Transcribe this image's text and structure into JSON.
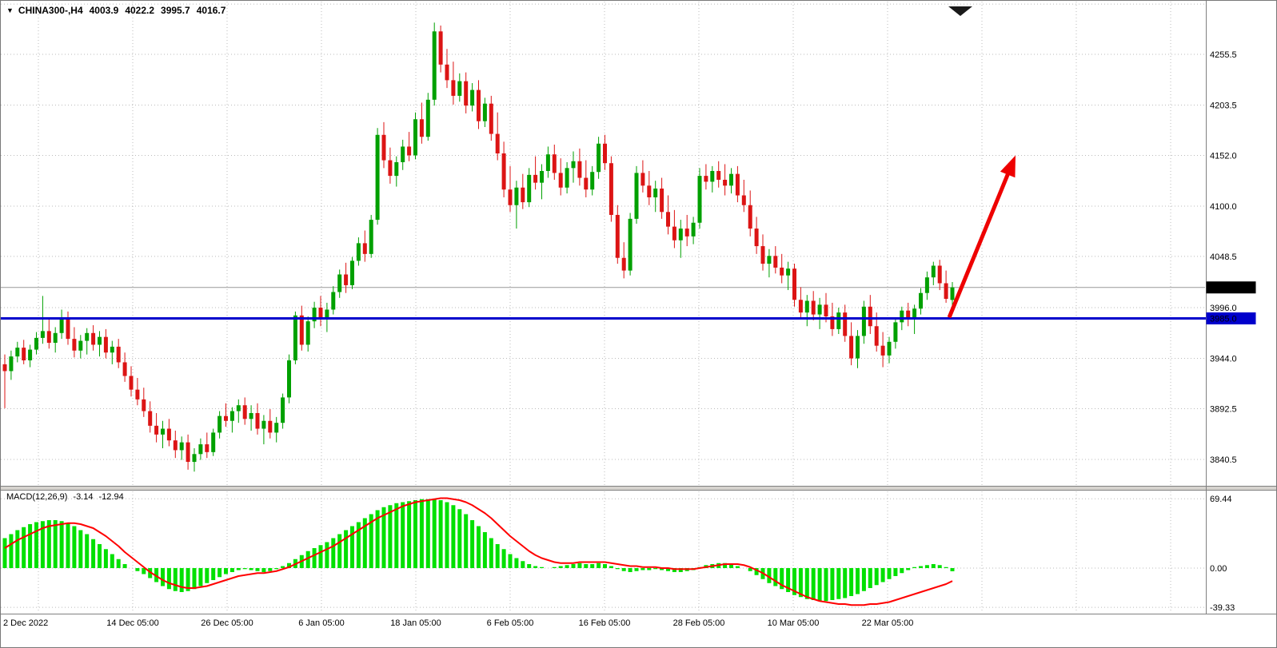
{
  "info_bar": {
    "marker": "▼",
    "symbol_period": "CHINA300-,H4",
    "open": "4003.9",
    "high": "4022.2",
    "low": "3995.7",
    "close": "4016.7"
  },
  "macd_panel": {
    "label": "MACD(12,26,9)",
    "main_value": "-3.14",
    "signal_value": "-12.94"
  },
  "colors": {
    "bull": "#00A000",
    "bear": "#DC1414",
    "grid": "#BBBBBB",
    "current_price_line": "#999999",
    "level_blue": "#0000CC",
    "badge_current_bg": "#000000",
    "badge_text": "#FFFFFF",
    "macd_hist": "#00E000",
    "macd_signal": "#FF0000",
    "arrow": "#EE0000",
    "separator": "#D6D3CE",
    "border": "#787878"
  },
  "chart_data": {
    "type": "candlestick",
    "symbol": "CHINA300-",
    "timeframe": "H4",
    "current_price": 4016.7,
    "level_line": 3985.0,
    "extra_gridline": 4307.0,
    "y_ticks": [
      4255.5,
      4203.5,
      4152.0,
      4100.0,
      4048.5,
      3996.0,
      3944.0,
      3892.5,
      3840.5
    ],
    "x_labels": [
      "2 Dec 2022",
      "14 Dec 05:00",
      "26 Dec 05:00",
      "6 Jan 05:00",
      "18 Jan 05:00",
      "6 Feb 05:00",
      "16 Feb 05:00",
      "28 Feb 05:00",
      "10 Mar 05:00",
      "22 Mar 05:00"
    ],
    "macd_ticks": [
      69.44,
      0,
      -39.33
    ],
    "arrow": {
      "from_bar": 149.5,
      "from_price": 3986,
      "to_bar": 160,
      "to_price": 4152
    },
    "candles": [
      [
        3938,
        3948,
        3893,
        3931
      ],
      [
        3931,
        3952,
        3922,
        3946
      ],
      [
        3946,
        3961,
        3940,
        3955
      ],
      [
        3955,
        3963,
        3938,
        3942
      ],
      [
        3942,
        3958,
        3935,
        3953
      ],
      [
        3953,
        3971,
        3948,
        3965
      ],
      [
        3965,
        4008,
        3959,
        3972
      ],
      [
        3972,
        3985,
        3954,
        3960
      ],
      [
        3960,
        3976,
        3950,
        3970
      ],
      [
        3970,
        3994,
        3964,
        3986
      ],
      [
        3986,
        3992,
        3958,
        3964
      ],
      [
        3964,
        3976,
        3945,
        3952
      ],
      [
        3952,
        3968,
        3944,
        3962
      ],
      [
        3962,
        3975,
        3948,
        3970
      ],
      [
        3970,
        3978,
        3952,
        3958
      ],
      [
        3958,
        3972,
        3946,
        3966
      ],
      [
        3966,
        3974,
        3944,
        3950
      ],
      [
        3950,
        3962,
        3938,
        3956
      ],
      [
        3956,
        3964,
        3934,
        3940
      ],
      [
        3940,
        3950,
        3920,
        3926
      ],
      [
        3926,
        3936,
        3905,
        3912
      ],
      [
        3912,
        3924,
        3896,
        3902
      ],
      [
        3902,
        3914,
        3884,
        3890
      ],
      [
        3890,
        3900,
        3868,
        3875
      ],
      [
        3875,
        3888,
        3858,
        3866
      ],
      [
        3866,
        3880,
        3852,
        3872
      ],
      [
        3872,
        3882,
        3854,
        3860
      ],
      [
        3860,
        3870,
        3842,
        3850
      ],
      [
        3850,
        3864,
        3840,
        3858
      ],
      [
        3858,
        3866,
        3830,
        3838
      ],
      [
        3838,
        3852,
        3828,
        3846
      ],
      [
        3846,
        3862,
        3840,
        3856
      ],
      [
        3856,
        3868,
        3842,
        3848
      ],
      [
        3848,
        3872,
        3844,
        3868
      ],
      [
        3868,
        3890,
        3862,
        3885
      ],
      [
        3885,
        3898,
        3874,
        3880
      ],
      [
        3880,
        3894,
        3868,
        3890
      ],
      [
        3890,
        3902,
        3878,
        3896
      ],
      [
        3896,
        3904,
        3876,
        3882
      ],
      [
        3882,
        3896,
        3870,
        3888
      ],
      [
        3888,
        3898,
        3866,
        3872
      ],
      [
        3872,
        3886,
        3856,
        3880
      ],
      [
        3880,
        3892,
        3862,
        3868
      ],
      [
        3868,
        3884,
        3858,
        3878
      ],
      [
        3878,
        3908,
        3872,
        3904
      ],
      [
        3904,
        3948,
        3898,
        3942
      ],
      [
        3942,
        3992,
        3938,
        3988
      ],
      [
        3988,
        3998,
        3952,
        3958
      ],
      [
        3958,
        3987,
        3951,
        3982
      ],
      [
        3982,
        4002,
        3975,
        3996
      ],
      [
        3996,
        4008,
        3977,
        3985
      ],
      [
        3985,
        4001,
        3971,
        3994
      ],
      [
        3994,
        4018,
        3989,
        4012
      ],
      [
        4012,
        4035,
        4006,
        4030
      ],
      [
        4030,
        4042,
        4011,
        4019
      ],
      [
        4019,
        4048,
        4015,
        4044
      ],
      [
        4044,
        4068,
        4039,
        4062
      ],
      [
        4062,
        4075,
        4043,
        4051
      ],
      [
        4051,
        4091,
        4047,
        4086
      ],
      [
        4086,
        4180,
        4081,
        4173
      ],
      [
        4173,
        4186,
        4139,
        4147
      ],
      [
        4147,
        4160,
        4123,
        4131
      ],
      [
        4131,
        4151,
        4120,
        4145
      ],
      [
        4145,
        4168,
        4137,
        4161
      ],
      [
        4161,
        4176,
        4146,
        4152
      ],
      [
        4152,
        4196,
        4148,
        4189
      ],
      [
        4189,
        4206,
        4164,
        4171
      ],
      [
        4171,
        4216,
        4167,
        4209
      ],
      [
        4209,
        4288,
        4203,
        4279
      ],
      [
        4279,
        4285,
        4237,
        4245
      ],
      [
        4245,
        4261,
        4221,
        4229
      ],
      [
        4229,
        4248,
        4204,
        4213
      ],
      [
        4213,
        4236,
        4207,
        4228
      ],
      [
        4228,
        4237,
        4195,
        4203
      ],
      [
        4203,
        4226,
        4197,
        4219
      ],
      [
        4219,
        4229,
        4179,
        4187
      ],
      [
        4187,
        4211,
        4181,
        4205
      ],
      [
        4205,
        4213,
        4167,
        4174
      ],
      [
        4174,
        4196,
        4147,
        4154
      ],
      [
        4154,
        4166,
        4109,
        4117
      ],
      [
        4117,
        4141,
        4094,
        4101
      ],
      [
        4101,
        4126,
        4077,
        4119
      ],
      [
        4119,
        4133,
        4097,
        4104
      ],
      [
        4104,
        4139,
        4099,
        4132
      ],
      [
        4132,
        4151,
        4117,
        4124
      ],
      [
        4124,
        4143,
        4107,
        4136
      ],
      [
        4136,
        4161,
        4129,
        4153
      ],
      [
        4153,
        4163,
        4127,
        4134
      ],
      [
        4134,
        4149,
        4111,
        4119
      ],
      [
        4119,
        4145,
        4113,
        4139
      ],
      [
        4139,
        4156,
        4124,
        4146
      ],
      [
        4146,
        4159,
        4121,
        4129
      ],
      [
        4129,
        4147,
        4109,
        4117
      ],
      [
        4117,
        4141,
        4111,
        4135
      ],
      [
        4135,
        4171,
        4128,
        4164
      ],
      [
        4164,
        4173,
        4137,
        4144
      ],
      [
        4144,
        4151,
        4084,
        4091
      ],
      [
        4091,
        4101,
        4041,
        4047
      ],
      [
        4047,
        4063,
        4026,
        4034
      ],
      [
        4034,
        4093,
        4029,
        4087
      ],
      [
        4087,
        4141,
        4082,
        4134
      ],
      [
        4134,
        4147,
        4114,
        4121
      ],
      [
        4121,
        4136,
        4101,
        4109
      ],
      [
        4109,
        4126,
        4094,
        4118
      ],
      [
        4118,
        4129,
        4087,
        4094
      ],
      [
        4094,
        4111,
        4071,
        4079
      ],
      [
        4079,
        4096,
        4057,
        4065
      ],
      [
        4065,
        4086,
        4047,
        4077
      ],
      [
        4077,
        4091,
        4059,
        4069
      ],
      [
        4069,
        4089,
        4061,
        4083
      ],
      [
        4083,
        4139,
        4077,
        4131
      ],
      [
        4131,
        4143,
        4117,
        4125
      ],
      [
        4125,
        4141,
        4114,
        4136
      ],
      [
        4136,
        4146,
        4119,
        4127
      ],
      [
        4127,
        4143,
        4111,
        4121
      ],
      [
        4121,
        4139,
        4113,
        4133
      ],
      [
        4133,
        4141,
        4104,
        4111
      ],
      [
        4111,
        4127,
        4094,
        4101
      ],
      [
        4101,
        4116,
        4069,
        4077
      ],
      [
        4077,
        4089,
        4051,
        4059
      ],
      [
        4059,
        4071,
        4034,
        4041
      ],
      [
        4041,
        4056,
        4027,
        4049
      ],
      [
        4049,
        4059,
        4031,
        4037
      ],
      [
        4037,
        4051,
        4021,
        4029
      ],
      [
        4029,
        4043,
        4014,
        4036
      ],
      [
        4036,
        4041,
        3997,
        4004
      ],
      [
        4004,
        4017,
        3984,
        3991
      ],
      [
        3991,
        4009,
        3977,
        4003
      ],
      [
        4003,
        4013,
        3983,
        3989
      ],
      [
        3989,
        4006,
        3974,
        3999
      ],
      [
        3999,
        4011,
        3981,
        3987
      ],
      [
        3987,
        4001,
        3967,
        3974
      ],
      [
        3974,
        3996,
        3969,
        3991
      ],
      [
        3991,
        3999,
        3961,
        3967
      ],
      [
        3967,
        3981,
        3937,
        3944
      ],
      [
        3944,
        3973,
        3934,
        3967
      ],
      [
        3967,
        4003,
        3959,
        3997
      ],
      [
        3997,
        4009,
        3969,
        3977
      ],
      [
        3977,
        3991,
        3951,
        3957
      ],
      [
        3957,
        3971,
        3935,
        3947
      ],
      [
        3947,
        3966,
        3939,
        3961
      ],
      [
        3961,
        3986,
        3954,
        3981
      ],
      [
        3981,
        3997,
        3973,
        3993
      ],
      [
        3993,
        4001,
        3977,
        3984
      ],
      [
        3984,
        3999,
        3969,
        3995
      ],
      [
        3995,
        4016,
        3989,
        4011
      ],
      [
        4011,
        4033,
        4004,
        4027
      ],
      [
        4027,
        4043,
        4019,
        4039
      ],
      [
        4039,
        4045,
        4014,
        4021
      ],
      [
        4021,
        4034,
        4001,
        4005
      ],
      [
        4003.9,
        4022.2,
        3995.7,
        4016.7
      ]
    ],
    "indicator": {
      "name": "MACD",
      "params": [
        12,
        26,
        9
      ],
      "histogram": [
        30,
        34,
        38,
        41,
        44,
        46,
        47,
        48,
        48,
        47,
        45,
        42,
        38,
        34,
        29,
        24,
        19,
        14,
        9,
        4,
        0,
        -3,
        -6,
        -10,
        -14,
        -18,
        -21,
        -23,
        -24,
        -23,
        -21,
        -18,
        -15,
        -12,
        -9,
        -6,
        -4,
        -2,
        -1,
        -2,
        -3,
        -4,
        -3,
        -1,
        2,
        5,
        9,
        13,
        17,
        20,
        23,
        26,
        30,
        34,
        38,
        42,
        46,
        50,
        54,
        58,
        61,
        63,
        65,
        66,
        67,
        68,
        69,
        69,
        69,
        68,
        66,
        63,
        59,
        54,
        48,
        42,
        36,
        30,
        24,
        19,
        14,
        10,
        7,
        4,
        2,
        1,
        0,
        1,
        2,
        3,
        4,
        5,
        4,
        4,
        5,
        4,
        2,
        -1,
        -3,
        -4,
        -3,
        -2,
        -2,
        -1,
        -2,
        -3,
        -4,
        -4,
        -3,
        -2,
        1,
        3,
        4,
        5,
        5,
        4,
        2,
        0,
        -3,
        -7,
        -11,
        -15,
        -18,
        -21,
        -24,
        -27,
        -29,
        -31,
        -32,
        -33,
        -33,
        -32,
        -31,
        -30,
        -28,
        -26,
        -23,
        -20,
        -17,
        -14,
        -11,
        -8,
        -5,
        -2,
        1,
        2,
        3,
        4,
        3,
        1,
        -3.14
      ],
      "signal": [
        20,
        24,
        28,
        31,
        34,
        37,
        40,
        42,
        43,
        44,
        45,
        45,
        44,
        42,
        40,
        36,
        32,
        27,
        22,
        16,
        11,
        6,
        1,
        -4,
        -8,
        -12,
        -15,
        -17,
        -19,
        -20,
        -20,
        -19,
        -18,
        -16,
        -14,
        -12,
        -10,
        -8,
        -7,
        -6,
        -5,
        -5,
        -4,
        -3,
        -1,
        1,
        4,
        7,
        10,
        13,
        16,
        19,
        22,
        26,
        30,
        34,
        38,
        42,
        46,
        50,
        53,
        56,
        59,
        62,
        64,
        66,
        67,
        68,
        69,
        70,
        70,
        69,
        68,
        66,
        63,
        59,
        55,
        50,
        44,
        38,
        32,
        27,
        22,
        17,
        13,
        10,
        8,
        6,
        5,
        5,
        5,
        6,
        6,
        6,
        6,
        6,
        5,
        4,
        3,
        2,
        2,
        1,
        1,
        1,
        0,
        0,
        -1,
        -1,
        -1,
        -1,
        0,
        1,
        2,
        3,
        4,
        4,
        4,
        3,
        1,
        -2,
        -5,
        -9,
        -13,
        -17,
        -20,
        -23,
        -26,
        -29,
        -31,
        -33,
        -34,
        -35,
        -36,
        -36,
        -37,
        -37,
        -37,
        -36,
        -36,
        -35,
        -34,
        -32,
        -30,
        -28,
        -26,
        -24,
        -22,
        -20,
        -18,
        -16,
        -12.94
      ]
    }
  }
}
